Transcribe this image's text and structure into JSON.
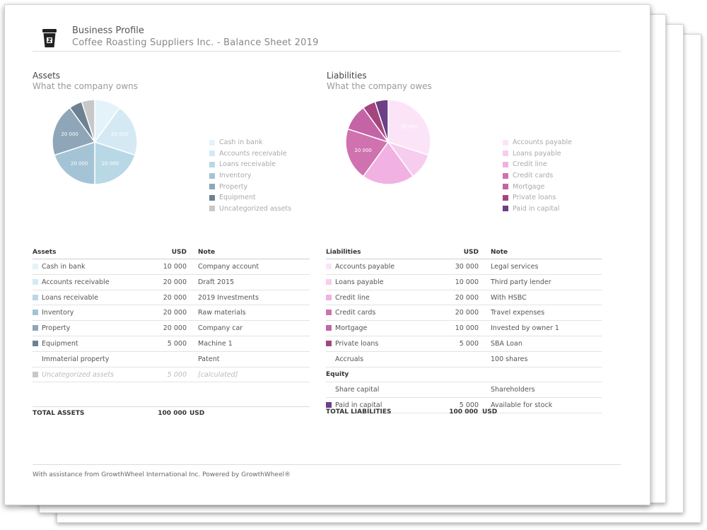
{
  "header": {
    "title": "Business Profile",
    "subtitle": "Coffee Roasting Suppliers Inc. - Balance Sheet 2019",
    "logo_icon": "coffee-cup-icon"
  },
  "assets_section": {
    "title": "Assets",
    "subtitle": "What the company owns"
  },
  "liabilities_section": {
    "title": "Liabilities",
    "subtitle": "What the company owes"
  },
  "chart_data": [
    {
      "type": "pie",
      "title": "",
      "legend_position": "right",
      "slices": [
        {
          "name": "Cash in bank",
          "value": 10000,
          "label": "",
          "color": "#e4f3fa"
        },
        {
          "name": "Accounts receivable",
          "value": 20000,
          "label": "20 000",
          "color": "#d4e9f3"
        },
        {
          "name": "Loans receivable",
          "value": 20000,
          "label": "20 000",
          "color": "#b8d8e6"
        },
        {
          "name": "Inventory",
          "value": 20000,
          "label": "20 000",
          "color": "#a4c4d6"
        },
        {
          "name": "Property",
          "value": 20000,
          "label": "20 000",
          "color": "#8ea6b8"
        },
        {
          "name": "Equipment",
          "value": 5000,
          "label": "",
          "color": "#6e8193"
        },
        {
          "name": "Uncategorized assets",
          "value": 5000,
          "label": "",
          "color": "#c8c8c8"
        }
      ]
    },
    {
      "type": "pie",
      "title": "",
      "legend_position": "right",
      "slices": [
        {
          "name": "Accounts payable",
          "value": 30000,
          "label": "30 000",
          "color": "#fbe4f8"
        },
        {
          "name": "Loans payable",
          "value": 10000,
          "label": "",
          "color": "#f6cdef"
        },
        {
          "name": "Credit line",
          "value": 20000,
          "label": "",
          "color": "#f1b1e3"
        },
        {
          "name": "Credit cards",
          "value": 20000,
          "label": "20 000",
          "color": "#cf72af"
        },
        {
          "name": "Mortgage",
          "value": 10000,
          "label": "",
          "color": "#c464a6"
        },
        {
          "name": "Private loans",
          "value": 5000,
          "label": "",
          "color": "#a4457f"
        },
        {
          "name": "Paid in capital",
          "value": 5000,
          "label": "",
          "color": "#6c3f86"
        }
      ]
    }
  ],
  "assets_table": {
    "headers": {
      "name": "Assets",
      "amount": "USD",
      "note": "Note"
    },
    "rows": [
      {
        "name": "Cash in bank",
        "amount": "10 000",
        "note": "Company account",
        "color": "#e4f3fa"
      },
      {
        "name": "Accounts receivable",
        "amount": "20 000",
        "note": "Draft 2015",
        "color": "#d4e9f3"
      },
      {
        "name": "Loans receivable",
        "amount": "20 000",
        "note": "2019 Investments",
        "color": "#b8d8e6"
      },
      {
        "name": "Inventory",
        "amount": "20 000",
        "note": "Raw materials",
        "color": "#a4c4d6"
      },
      {
        "name": "Property",
        "amount": "20 000",
        "note": "Company car",
        "color": "#8ea6b8"
      },
      {
        "name": "Equipment",
        "amount": "5 000",
        "note": "Machine 1",
        "color": "#6e8193"
      },
      {
        "name": "Immaterial property",
        "amount": "",
        "note": "Patent",
        "color": ""
      },
      {
        "name": "Uncategorized assets",
        "amount": "5 000",
        "note": "[calculated]",
        "color": "#c8c8c8",
        "muted": true
      }
    ],
    "total_label": "TOTAL ASSETS",
    "total_value": "100 000",
    "total_unit": "USD"
  },
  "liabilities_table": {
    "headers": {
      "name": "Liabilities",
      "amount": "USD",
      "note": "Note"
    },
    "rows": [
      {
        "name": "Accounts payable",
        "amount": "30 000",
        "note": "Legal services",
        "color": "#fbe4f8"
      },
      {
        "name": "Loans payable",
        "amount": "10 000",
        "note": "Third party lender",
        "color": "#f6cdef"
      },
      {
        "name": "Credit line",
        "amount": "20 000",
        "note": "With HSBC",
        "color": "#f1b1e3"
      },
      {
        "name": "Credit cards",
        "amount": "20 000",
        "note": "Travel expenses",
        "color": "#cf72af"
      },
      {
        "name": "Mortgage",
        "amount": "10 000",
        "note": "Invested by owner 1",
        "color": "#c464a6"
      },
      {
        "name": "Private loans",
        "amount": "5 000",
        "note": "SBA Loan",
        "color": "#a4457f"
      },
      {
        "name": "Accruals",
        "amount": "",
        "note": "100 shares",
        "color": ""
      },
      {
        "name": "Equity",
        "amount": "",
        "note": "",
        "color": "",
        "section": true
      },
      {
        "name": "Share capital",
        "amount": "",
        "note": "Shareholders",
        "color": ""
      },
      {
        "name": "Paid in capital",
        "amount": "5 000",
        "note": "Available for stock",
        "color": "#6c3f86"
      }
    ],
    "total_label": "TOTAL LIABILITIES",
    "total_value": "100 000",
    "total_unit": "USD"
  },
  "footer": {
    "text": "With assistance from GrowthWheel International Inc. Powered by GrowthWheel®"
  }
}
